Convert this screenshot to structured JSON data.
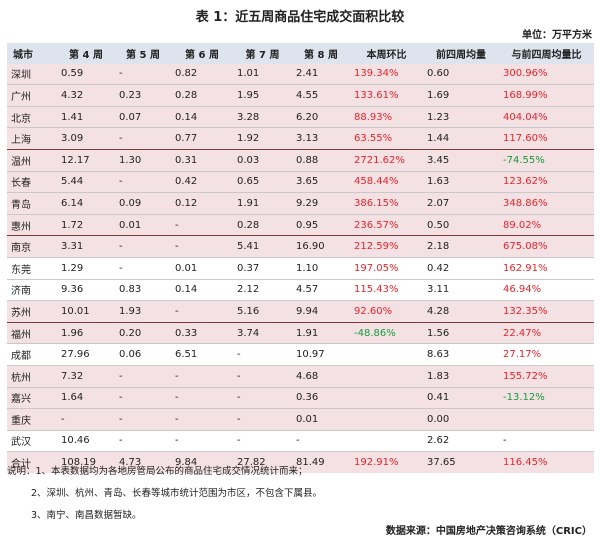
{
  "title": "表 1：近五周商品住宅成交面积比较",
  "unit": "单位：万平方米",
  "headers": [
    "城市",
    "第 4 周",
    "第 5 周",
    "第 6 周",
    "第 7 周",
    "第 8 周",
    "本周环比",
    "前四周均量",
    "与前四周均量比"
  ],
  "rows": [
    {
      "city": "深圳",
      "w4": "0.59",
      "w5": "-",
      "w6": "0.82",
      "w7": "1.01",
      "w8": "2.41",
      "wow": "139.34%",
      "avg4": "0.60",
      "vs": "300.96%"
    },
    {
      "city": "广州",
      "w4": "4.32",
      "w5": "0.23",
      "w6": "0.28",
      "w7": "1.95",
      "w8": "4.55",
      "wow": "133.61%",
      "avg4": "1.69",
      "vs": "168.99%"
    },
    {
      "city": "北京",
      "w4": "1.41",
      "w5": "0.07",
      "w6": "0.14",
      "w7": "3.28",
      "w8": "6.20",
      "wow": "88.93%",
      "avg4": "1.23",
      "vs": "404.04%"
    },
    {
      "city": "上海",
      "w4": "3.09",
      "w5": "-",
      "w6": "0.77",
      "w7": "1.92",
      "w8": "3.13",
      "wow": "63.55%",
      "avg4": "1.44",
      "vs": "117.60%"
    },
    {
      "city": "温州",
      "w4": "12.17",
      "w5": "1.30",
      "w6": "0.31",
      "w7": "0.03",
      "w8": "0.88",
      "wow": "2721.62%",
      "avg4": "3.45",
      "vs": "-74.55%"
    },
    {
      "city": "长春",
      "w4": "5.44",
      "w5": "-",
      "w6": "0.42",
      "w7": "0.65",
      "w8": "3.65",
      "wow": "458.44%",
      "avg4": "1.63",
      "vs": "123.62%"
    },
    {
      "city": "青岛",
      "w4": "6.14",
      "w5": "0.09",
      "w6": "0.12",
      "w7": "1.91",
      "w8": "9.29",
      "wow": "386.15%",
      "avg4": "2.07",
      "vs": "348.86%"
    },
    {
      "city": "惠州",
      "w4": "1.72",
      "w5": "0.01",
      "w6": "-",
      "w7": "0.28",
      "w8": "0.95",
      "wow": "236.57%",
      "avg4": "0.50",
      "vs": "89.02%"
    },
    {
      "city": "南京",
      "w4": "3.31",
      "w5": "-",
      "w6": "-",
      "w7": "5.41",
      "w8": "16.90",
      "wow": "212.59%",
      "avg4": "2.18",
      "vs": "675.08%"
    },
    {
      "city": "东莞",
      "w4": "1.29",
      "w5": "-",
      "w6": "0.01",
      "w7": "0.37",
      "w8": "1.10",
      "wow": "197.05%",
      "avg4": "0.42",
      "vs": "162.91%"
    },
    {
      "city": "济南",
      "w4": "9.36",
      "w5": "0.83",
      "w6": "0.14",
      "w7": "2.12",
      "w8": "4.57",
      "wow": "115.43%",
      "avg4": "3.11",
      "vs": "46.94%"
    },
    {
      "city": "苏州",
      "w4": "10.01",
      "w5": "1.93",
      "w6": "-",
      "w7": "5.16",
      "w8": "9.94",
      "wow": "92.60%",
      "avg4": "4.28",
      "vs": "132.35%"
    },
    {
      "city": "福州",
      "w4": "1.96",
      "w5": "0.20",
      "w6": "0.33",
      "w7": "3.74",
      "w8": "1.91",
      "wow": "-48.86%",
      "avg4": "1.56",
      "vs": "22.47%"
    },
    {
      "city": "成都",
      "w4": "27.96",
      "w5": "0.06",
      "w6": "6.51",
      "w7": "-",
      "w8": "10.97",
      "wow": "",
      "avg4": "8.63",
      "vs": "27.17%"
    },
    {
      "city": "杭州",
      "w4": "7.32",
      "w5": "-",
      "w6": "-",
      "w7": "-",
      "w8": "4.68",
      "wow": "",
      "avg4": "1.83",
      "vs": "155.72%"
    },
    {
      "city": "嘉兴",
      "w4": "1.64",
      "w5": "-",
      "w6": "-",
      "w7": "-",
      "w8": "0.36",
      "wow": "",
      "avg4": "0.41",
      "vs": "-13.12%"
    },
    {
      "city": "重庆",
      "w4": "-",
      "w5": "-",
      "w6": "-",
      "w7": "-",
      "w8": "0.01",
      "wow": "",
      "avg4": "0.00",
      "vs": ""
    },
    {
      "city": "武汉",
      "w4": "10.46",
      "w5": "-",
      "w6": "-",
      "w7": "-",
      "w8": "-",
      "wow": "",
      "avg4": "2.62",
      "vs": "-"
    }
  ],
  "total": {
    "city": "合计",
    "w4": "108.19",
    "w5": "4.73",
    "w6": "9.84",
    "w7": "27.82",
    "w8": "81.49",
    "wow": "192.91%",
    "avg4": "37.65",
    "vs": "116.45%"
  },
  "notes": {
    "n1": "说明：1、本表数据均为各地房管局公布的商品住宅成交情况统计而来；",
    "n2": "2、深圳、杭州、青岛、长春等城市统计范围为市区，不包含下属县。",
    "n3": "3、南宁、南昌数据暂缺。"
  },
  "source": "数据来源：中国房地产决策咨询系统（CRIC）",
  "colors": {
    "header_bg": "#dde4ee",
    "shaded_bg": "#f4e1e3",
    "positive": "#e8242a",
    "negative": "#1a9a3a",
    "group_border": "#7a3b3b"
  }
}
